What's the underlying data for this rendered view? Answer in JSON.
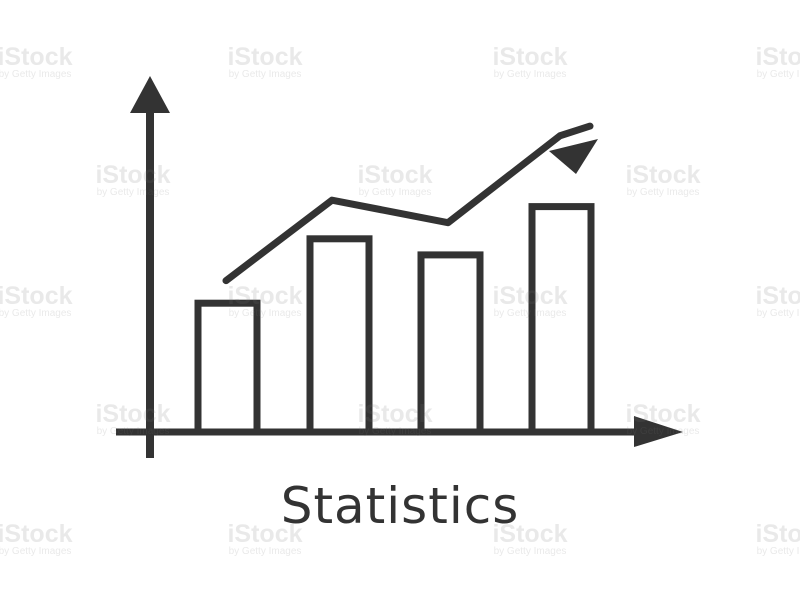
{
  "caption": "Statistics",
  "watermark": {
    "brand": "iStock",
    "byline": "by Getty Images"
  },
  "chart_data": {
    "type": "bar",
    "categories": [
      "",
      "",
      "",
      ""
    ],
    "values": [
      40,
      60,
      55,
      70
    ],
    "trend_line": [
      47,
      72,
      65,
      92,
      95
    ],
    "title": "",
    "xlabel": "",
    "ylabel": "",
    "ylim": [
      0,
      100
    ],
    "grid": false
  },
  "colors": {
    "ink": "#333333",
    "background": "#ffffff"
  },
  "icon": "statistics-bar-chart-icon"
}
